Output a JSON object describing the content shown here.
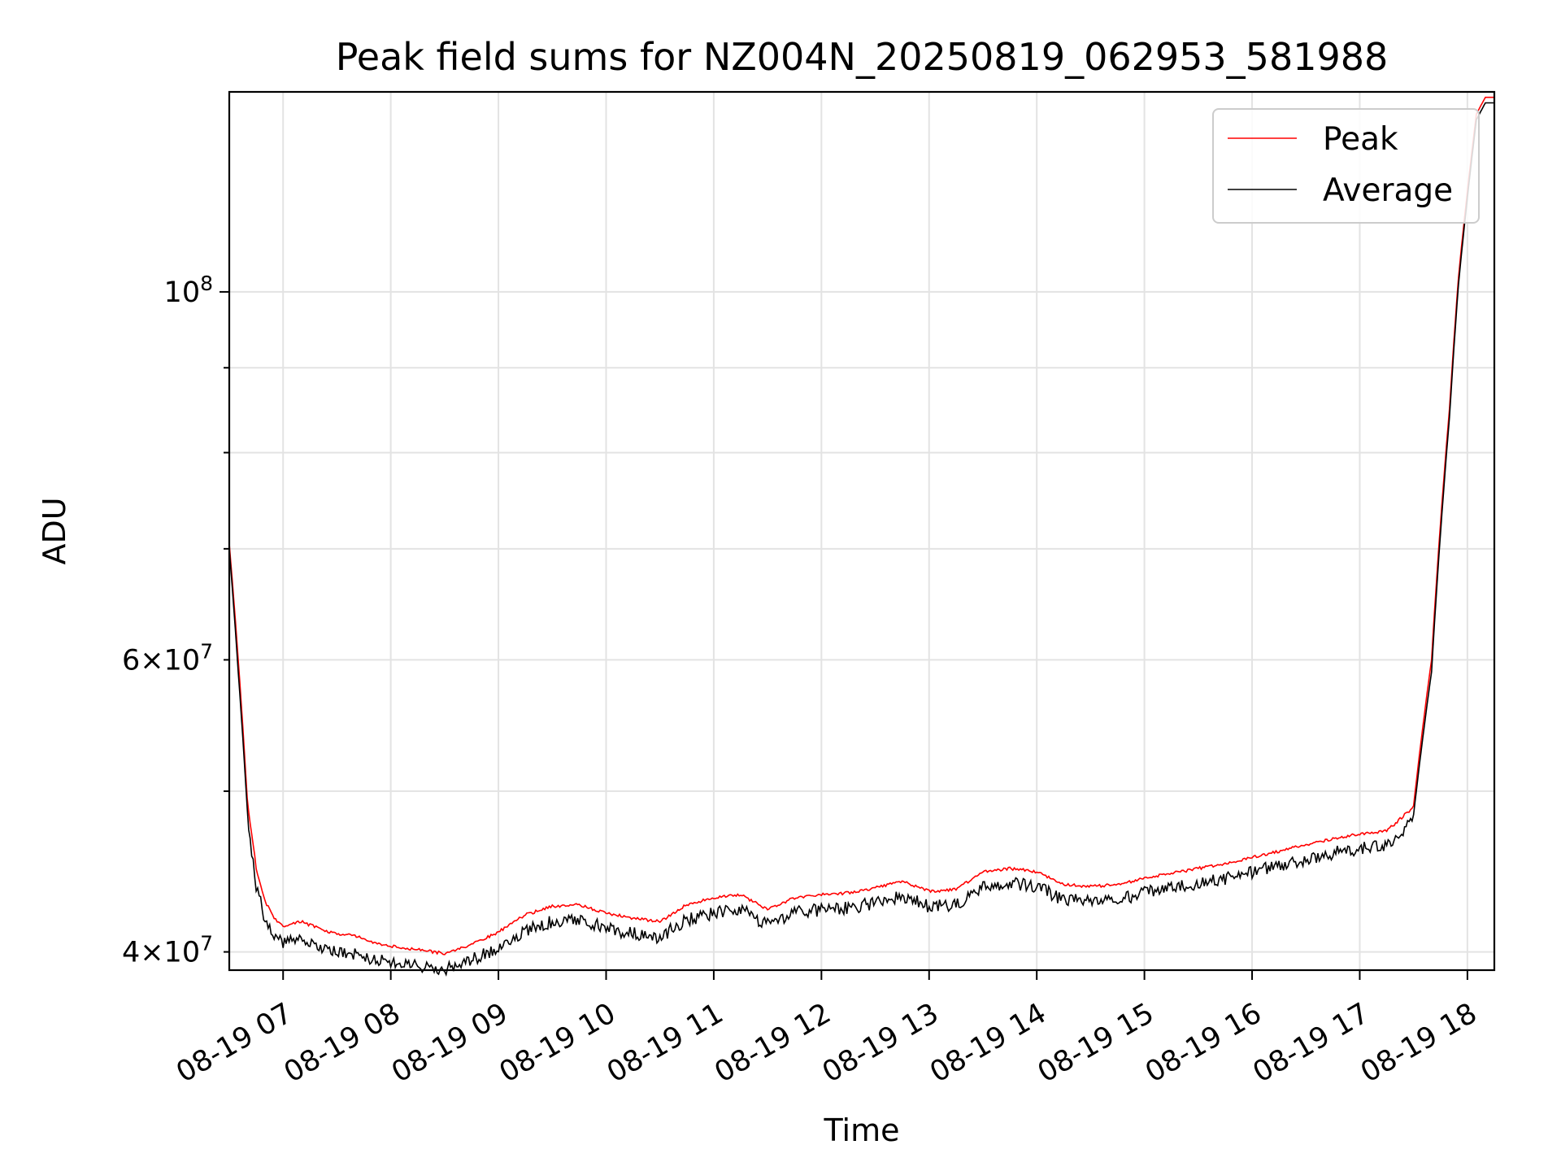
{
  "chart_data": {
    "type": "line",
    "title": "Peak field sums for NZ004N_20250819_062953_581988",
    "xlabel": "Time",
    "ylabel": "ADU",
    "y_scale": "log",
    "grid": true,
    "legend_position": "top-right",
    "xlim": [
      "2025-08-19 06:30",
      "2025-08-19 18:15"
    ],
    "ylim": [
      39000000,
      132000000
    ],
    "x_ticks": [
      "08-19 07",
      "08-19 08",
      "08-19 09",
      "08-19 10",
      "08-19 11",
      "08-19 12",
      "08-19 13",
      "08-19 14",
      "08-19 15",
      "08-19 16",
      "08-19 17",
      "08-19 18"
    ],
    "y_ticks_major": [
      {
        "value": 100000000,
        "label": "10^8"
      }
    ],
    "y_ticks_minor": [
      {
        "value": 40000000,
        "label": "4×10^7"
      },
      {
        "value": 50000000,
        "label": ""
      },
      {
        "value": 60000000,
        "label": "6×10^7"
      },
      {
        "value": 70000000,
        "label": ""
      },
      {
        "value": 80000000,
        "label": ""
      },
      {
        "value": 90000000,
        "label": ""
      }
    ],
    "series": [
      {
        "name": "Peak",
        "color": "#ff0000",
        "x": [
          "06:30",
          "06:35",
          "06:40",
          "06:45",
          "06:50",
          "06:55",
          "07:00",
          "07:10",
          "07:20",
          "07:30",
          "07:40",
          "07:50",
          "08:00",
          "08:15",
          "08:30",
          "08:45",
          "09:00",
          "09:15",
          "09:30",
          "09:45",
          "10:00",
          "10:15",
          "10:30",
          "10:45",
          "11:00",
          "11:15",
          "11:30",
          "11:45",
          "12:00",
          "12:15",
          "12:30",
          "12:45",
          "13:00",
          "13:15",
          "13:30",
          "13:45",
          "14:00",
          "14:15",
          "14:30",
          "14:45",
          "15:00",
          "15:15",
          "15:30",
          "15:45",
          "16:00",
          "16:15",
          "16:30",
          "16:45",
          "17:00",
          "17:15",
          "17:30",
          "17:40",
          "17:50",
          "17:55",
          "18:00",
          "18:05",
          "18:10",
          "18:15"
        ],
        "y": [
          70500000,
          60000000,
          49500000,
          45000000,
          43000000,
          42000000,
          41500000,
          41800000,
          41400000,
          41100000,
          41000000,
          40600000,
          40400000,
          40200000,
          40000000,
          40500000,
          41200000,
          42200000,
          42700000,
          42800000,
          42300000,
          42000000,
          41800000,
          42800000,
          43200000,
          43400000,
          42500000,
          43200000,
          43400000,
          43500000,
          43800000,
          44200000,
          43600000,
          43700000,
          44800000,
          45000000,
          44800000,
          44000000,
          43900000,
          44000000,
          44400000,
          44700000,
          45000000,
          45300000,
          45700000,
          46100000,
          46500000,
          46900000,
          47200000,
          47400000,
          49000000,
          60000000,
          85000000,
          102000000,
          115000000,
          128000000,
          131000000,
          131000000
        ]
      },
      {
        "name": "Average",
        "color": "#000000",
        "x": [
          "06:30",
          "06:35",
          "06:40",
          "06:45",
          "06:50",
          "06:55",
          "07:00",
          "07:10",
          "07:20",
          "07:30",
          "07:40",
          "07:50",
          "08:00",
          "08:15",
          "08:30",
          "08:45",
          "09:00",
          "09:15",
          "09:30",
          "09:45",
          "10:00",
          "10:15",
          "10:30",
          "10:45",
          "11:00",
          "11:15",
          "11:30",
          "11:45",
          "12:00",
          "12:15",
          "12:30",
          "12:45",
          "13:00",
          "13:15",
          "13:30",
          "13:45",
          "14:00",
          "14:15",
          "14:30",
          "14:45",
          "15:00",
          "15:15",
          "15:30",
          "15:45",
          "16:00",
          "16:15",
          "16:30",
          "16:45",
          "17:00",
          "17:15",
          "17:30",
          "17:40",
          "17:50",
          "17:55",
          "18:00",
          "18:05",
          "18:10",
          "18:15"
        ],
        "y": [
          70000000,
          59000000,
          48800000,
          44200000,
          42200000,
          41200000,
          40900000,
          41000000,
          40700000,
          40400000,
          40300000,
          40000000,
          39800000,
          39600000,
          39400000,
          39900000,
          40600000,
          41600000,
          42100000,
          42200000,
          41700000,
          41400000,
          41200000,
          42200000,
          42600000,
          42800000,
          41900000,
          42600000,
          42800000,
          42900000,
          43200000,
          43600000,
          43000000,
          43100000,
          44200000,
          44400000,
          44200000,
          43400000,
          43300000,
          43400000,
          43800000,
          44100000,
          44400000,
          44700000,
          45100000,
          45500000,
          45900000,
          46300000,
          46600000,
          46800000,
          48400000,
          59000000,
          84000000,
          101000000,
          114000000,
          127000000,
          130000000,
          130000000
        ]
      }
    ]
  }
}
